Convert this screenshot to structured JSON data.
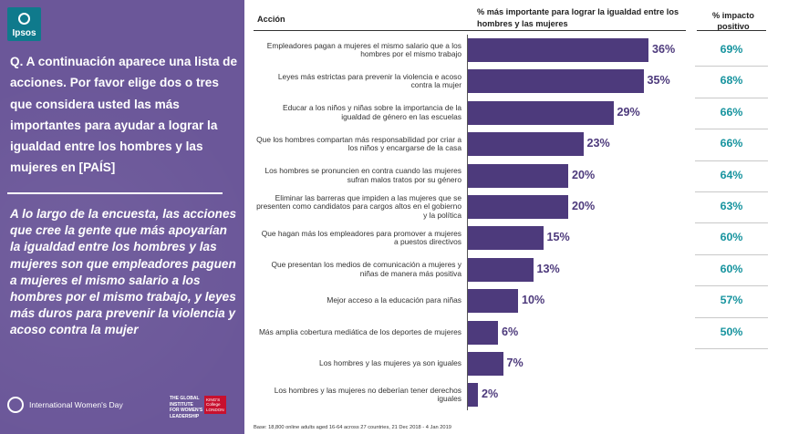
{
  "brand": {
    "logo_text": "Ipsos"
  },
  "question": "Q. A continuación aparece una lista de acciones. Por favor elige dos o tres que considera usted las más importantes para ayudar a lograr la igualdad entre los hombres y las mujeres en [PAÍS]",
  "summary": "A lo largo de la encuesta, las acciones que cree la gente que más apoyarían la igualdad entre los hombres y las mujeres son que empleadores paguen a mujeres el mismo salario a los hombres por el mismo trabajo, y leyes más duros para prevenir la violencia y acoso contra la mujer",
  "footer": {
    "iwd": "International Women's Day",
    "gi": [
      "THE GLOBAL",
      "INSTITUTE",
      "FOR WOMEN'S",
      "LEADERSHIP"
    ],
    "kings": [
      "KING'S",
      "College",
      "LONDON"
    ],
    "base": "Base: 18,800 online adults aged 16-64 across 27 countries,  21 Dec 2018 - 4 Jan  2019"
  },
  "colors": {
    "panel": "#6b5799",
    "bar": "#4d3a7c",
    "positive": "#18949f"
  },
  "chart_data": {
    "type": "bar",
    "orientation": "horizontal",
    "title": "% más importante para lograr la igualdad entre los hombres y las mujeres",
    "category_header": "Acción",
    "secondary_header": "% impacto positivo",
    "categories": [
      "Empleadores pagan a mujeres el mismo salario que a los hombres por el mismo trabajo",
      "Leyes más estrictas para prevenir la violencia e acoso contra la mujer",
      "Educar a los niños y niñas sobre la importancia de la igualdad de género en las escuelas",
      "Que los hombres compartan más responsabilidad por criar a los niños y encargarse de la casa",
      "Los hombres se pronuncien en contra cuando las mujeres sufran malos tratos por su género",
      "Eliminar las barreras que impiden a las mujeres que se presenten como candidatos para cargos altos en el gobierno y la política",
      "Que hagan más los empleadores para promover a mujeres a puestos directivos",
      "Que presentan los medios de comunicación a mujeres y niñas de manera más positiva",
      "Mejor acceso a la educación para niñas",
      "Más amplia cobertura mediática de los deportes de mujeres",
      "Los hombres y las mujeres ya son iguales",
      "Los hombres y las mujeres no deberían tener derechos iguales"
    ],
    "values": [
      36,
      35,
      29,
      23,
      20,
      20,
      15,
      13,
      10,
      6,
      7,
      2
    ],
    "value_labels": [
      "36%",
      "35%",
      "29%",
      "23%",
      "20%",
      "20%",
      "15%",
      "13%",
      "10%",
      "6%",
      "7%",
      "2%"
    ],
    "positive_impact": [
      "69%",
      "68%",
      "66%",
      "66%",
      "64%",
      "63%",
      "60%",
      "60%",
      "57%",
      "50%"
    ],
    "xlim": [
      0,
      36
    ]
  }
}
